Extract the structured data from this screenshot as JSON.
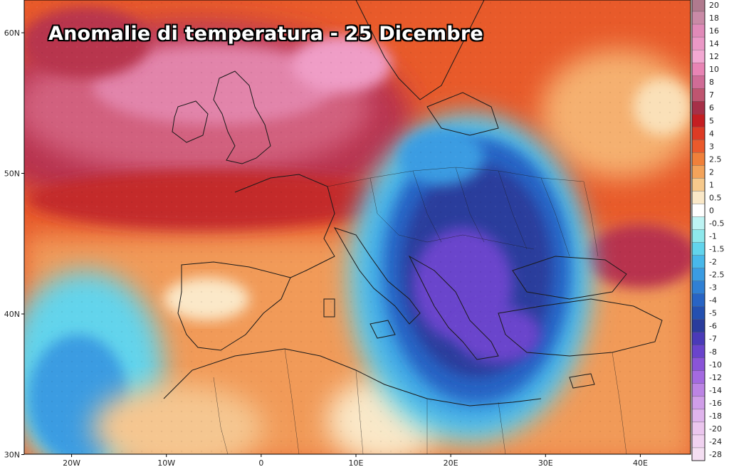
{
  "title": "Anomalie di temperatura - 25 Dicembre",
  "axes": {
    "lat_labels": [
      "60N",
      "50N",
      "40N",
      "30N"
    ],
    "lat_values": [
      60,
      50,
      40,
      30
    ],
    "lon_labels": [
      "20W",
      "10W",
      "0",
      "10E",
      "20E",
      "30E",
      "40E"
    ],
    "lon_values": [
      -20,
      -10,
      0,
      10,
      20,
      30,
      40
    ]
  },
  "legend": {
    "labels": [
      "20",
      "18",
      "16",
      "14",
      "12",
      "10",
      "8",
      "7",
      "6",
      "5",
      "4",
      "3",
      "2.5",
      "2",
      "1",
      "0.5",
      "0",
      "-0.5",
      "-1",
      "-1.5",
      "-2",
      "-2.5",
      "-3",
      "-4",
      "-5",
      "-6",
      "-7",
      "-8",
      "-10",
      "-12",
      "-14",
      "-16",
      "-18",
      "-20",
      "-24",
      "-28"
    ],
    "colors": [
      "#b07a8e",
      "#c98aa6",
      "#e08ab8",
      "#ea98c6",
      "#f2a8d2",
      "#e884b4",
      "#d06c96",
      "#bf5570",
      "#a63048",
      "#c41e22",
      "#dd3b25",
      "#ea5a2c",
      "#f0803a",
      "#f3a35a",
      "#f6c98c",
      "#fae8c8",
      "#ffffff",
      "#bdf3f3",
      "#8ee8ec",
      "#62d4ec",
      "#48b8ea",
      "#3a9ce2",
      "#3080d4",
      "#2864c4",
      "#2450b0",
      "#2a3c9c",
      "#4a3ab8",
      "#6a44cc",
      "#8a54d8",
      "#a46ae0",
      "#bc84e4",
      "#d09ee8",
      "#dfb4ec",
      "#ebc6ee",
      "#f0d2f0",
      "#f4def2"
    ]
  },
  "colors": {
    "land_border": "#1a1a1a",
    "water": "#ffffff"
  }
}
